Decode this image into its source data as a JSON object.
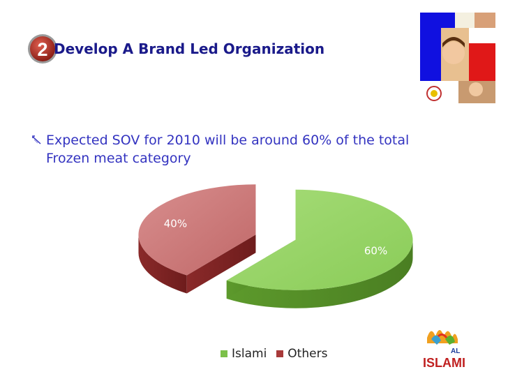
{
  "slide": {
    "number": "2",
    "title": "Develop A Brand Led Organization",
    "bullet": "Expected SOV for 2010 will be around  60% of the total Frozen meat category"
  },
  "brand": {
    "logo_top": "AL",
    "logo_bottom": "ISLAMI"
  },
  "colors": {
    "title": "#1a1a8a",
    "bullet": "#3333c0",
    "badge": "#c0392b",
    "islami": "#7cc04a",
    "others": "#a83a3a"
  },
  "chart_data": {
    "type": "pie",
    "style": "3d-exploded",
    "categories": [
      "Islami",
      "Others"
    ],
    "values": [
      60,
      40
    ],
    "data_labels": [
      "60%",
      "40%"
    ],
    "legend": "bottom",
    "title": ""
  }
}
